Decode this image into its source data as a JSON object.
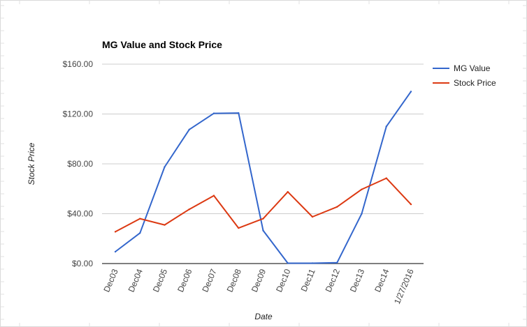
{
  "chart_data": {
    "type": "line",
    "title": "MG Value and Stock Price",
    "xlabel": "Date",
    "ylabel": "Stock Price",
    "categories": [
      "Dec03",
      "Dec04",
      "Dec05",
      "Dec06",
      "Dec07",
      "Dec08",
      "Dec09",
      "Dec10",
      "Dec11",
      "Dec12",
      "Dec13",
      "Dec14",
      "1/27/2016"
    ],
    "y_ticks": [
      "$0.00",
      "$40.00",
      "$80.00",
      "$120.00",
      "$160.00"
    ],
    "ylim": [
      0,
      160
    ],
    "grid": true,
    "legend_position": "right",
    "series": [
      {
        "name": "MG Value",
        "color": "#3366cc",
        "values": [
          9.5,
          24.5,
          77.5,
          107.5,
          120.5,
          120.8,
          26.5,
          0.3,
          0.3,
          0.7,
          40,
          110,
          138
        ]
      },
      {
        "name": "Stock Price",
        "color": "#dc3912",
        "values": [
          25.5,
          36,
          31,
          43.5,
          54.5,
          28.5,
          36,
          57.5,
          37.5,
          45.5,
          59.5,
          68.5,
          47.5
        ]
      }
    ]
  }
}
